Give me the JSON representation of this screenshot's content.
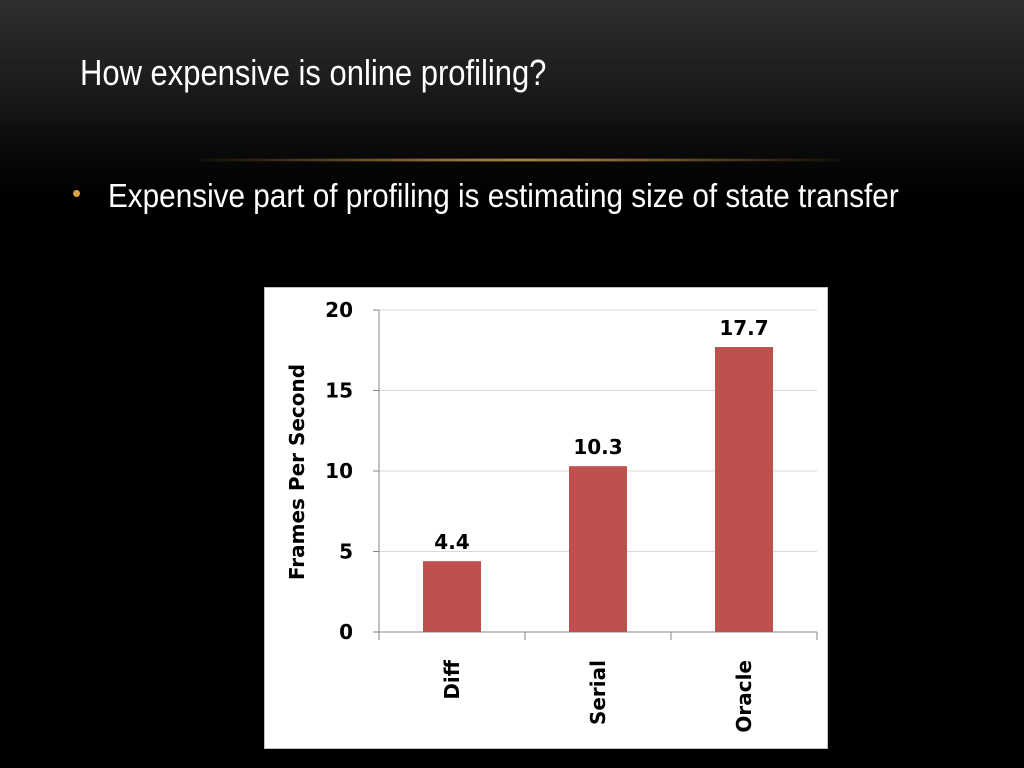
{
  "slide": {
    "title": "How expensive is online profiling?",
    "bullet": "Expensive part of profiling is estimating size of state transfer"
  },
  "colors": {
    "background": "#000000",
    "title_text": "#ffffff",
    "bullet_marker": "#e0a040",
    "divider_accent": "#d8a860",
    "bar": "#c0504d",
    "gridline": "#d9d9d9",
    "chart_background": "#ffffff"
  },
  "chart_data": {
    "type": "bar",
    "categories": [
      "Diff",
      "Serial",
      "Oracle"
    ],
    "values": [
      4.4,
      10.3,
      17.7
    ],
    "data_labels": [
      "4.4",
      "10.3",
      "17.7"
    ],
    "ylabel": "Frames Per Second",
    "xlabel": "",
    "ylim": [
      0,
      20
    ],
    "yticks": [
      0,
      5,
      10,
      15,
      20
    ],
    "ytick_labels": [
      "0",
      "5",
      "10",
      "15",
      "20"
    ],
    "grid": true,
    "legend": "none"
  }
}
